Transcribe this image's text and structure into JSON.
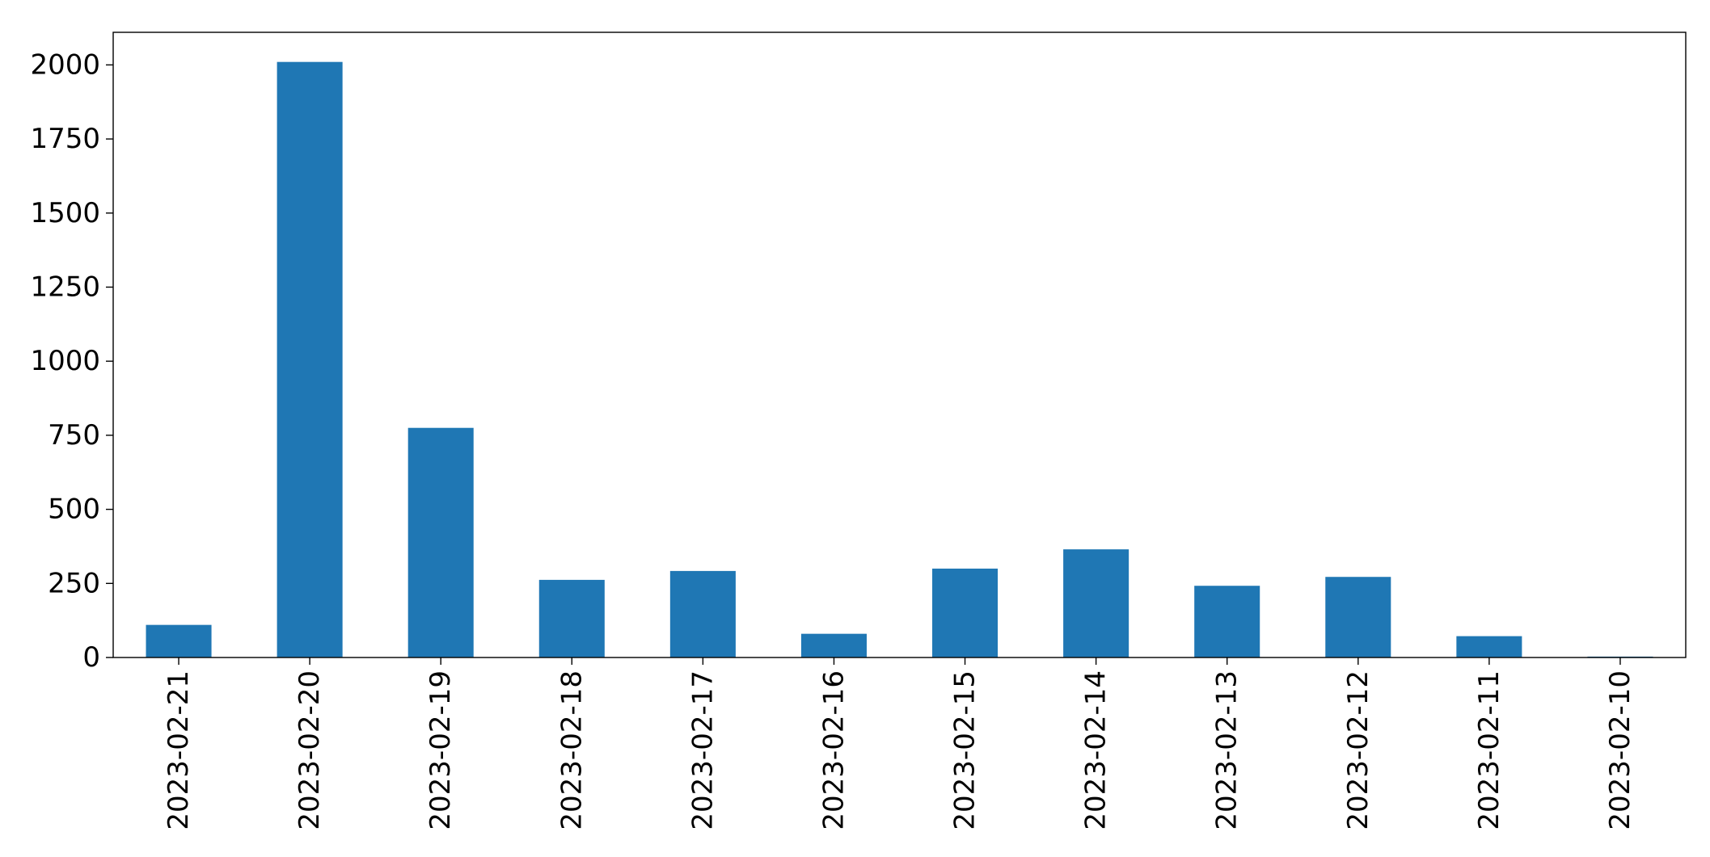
{
  "chart_data": {
    "type": "bar",
    "title": "",
    "xlabel": "",
    "ylabel": "",
    "categories": [
      "2023-02-21",
      "2023-02-20",
      "2023-02-19",
      "2023-02-18",
      "2023-02-17",
      "2023-02-16",
      "2023-02-15",
      "2023-02-14",
      "2023-02-13",
      "2023-02-12",
      "2023-02-11",
      "2023-02-10"
    ],
    "values": [
      110,
      2010,
      775,
      262,
      292,
      80,
      300,
      365,
      242,
      272,
      72,
      3
    ],
    "ylim": [
      0,
      2110
    ],
    "yticks": [
      0,
      250,
      500,
      750,
      1000,
      1250,
      1500,
      1750,
      2000
    ],
    "bar_color": "#1f77b4",
    "grid": false,
    "legend": "none"
  }
}
